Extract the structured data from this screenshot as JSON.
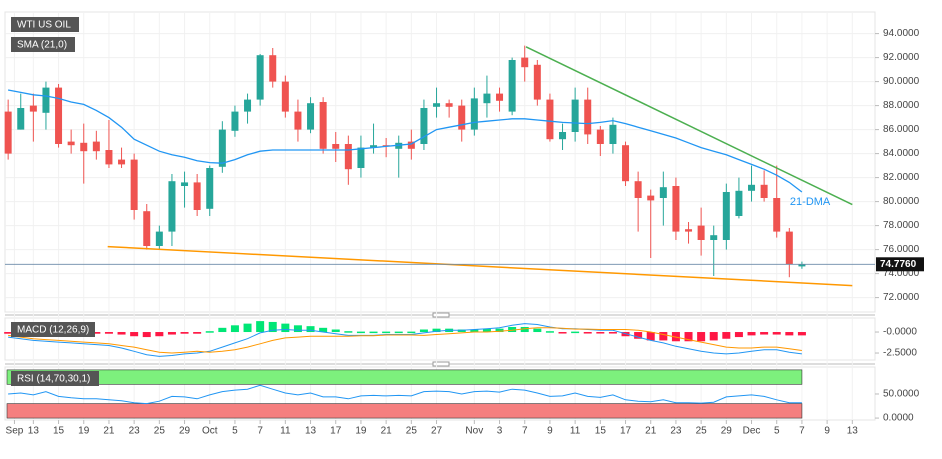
{
  "chart_data": [
    {
      "type": "candlestick",
      "title": "WTI US OIL",
      "indicator": "SMA (21,0)",
      "xlim": [
        -0.25,
        68.8
      ],
      "ylim": [
        70.8,
        95.8
      ],
      "yticks": [
        {
          "value": 72,
          "label": "72.0000"
        },
        {
          "value": 74,
          "label": "74.0000"
        },
        {
          "value": 76,
          "label": "76.0000"
        },
        {
          "value": 78,
          "label": "78.0000"
        },
        {
          "value": 80,
          "label": "80.0000"
        },
        {
          "value": 82,
          "label": "82.0000"
        },
        {
          "value": 84,
          "label": "84.0000"
        },
        {
          "value": 86,
          "label": "86.0000"
        },
        {
          "value": 88,
          "label": "88.0000"
        },
        {
          "value": 90,
          "label": "90.0000"
        },
        {
          "value": 92,
          "label": "92.0000"
        },
        {
          "value": 94,
          "label": "94.0000"
        }
      ],
      "grid": true,
      "up_color": "#26a69a",
      "down_color": "#ef5350",
      "open": [
        87.5,
        86,
        88,
        87.4,
        89.5,
        85,
        84.9,
        85,
        84.3,
        83.5,
        83.5,
        79.2,
        76.3,
        77.5,
        81.3,
        81.6,
        79.4,
        82.9,
        85.9,
        87.5,
        88.5,
        92.2,
        90,
        87.5,
        86,
        88.3,
        84.8,
        84.8,
        82.8,
        84.5,
        84.7,
        84.4,
        85,
        84.8,
        87.9,
        88.2,
        88,
        86,
        88.2,
        89,
        87.5,
        92,
        91.4,
        88.5,
        85.2,
        85.8,
        88.5,
        86,
        84.8,
        84.7,
        81.7,
        80.5,
        80.3,
        81.3,
        77.7,
        78,
        76.8,
        76.8,
        78.8,
        80.9,
        81.4,
        80.3,
        77.5,
        74.6
      ],
      "high": [
        88.5,
        89,
        89,
        90,
        89.8,
        86,
        86.5,
        85.9,
        86.8,
        84.5,
        84,
        79.8,
        78,
        82.3,
        82.5,
        82.3,
        83,
        86.7,
        88,
        89,
        92.3,
        92.8,
        90.5,
        88.5,
        88.7,
        88.7,
        85.8,
        85.5,
        85.5,
        86.5,
        85.3,
        85.5,
        86,
        88.5,
        89.5,
        88.5,
        88.5,
        89.5,
        90.5,
        89.5,
        92,
        93,
        91.8,
        89,
        86.5,
        89.5,
        89.5,
        86.3,
        87,
        85,
        82.5,
        81,
        82.5,
        82,
        78.3,
        79.5,
        78,
        81.5,
        82,
        83,
        82.6,
        83,
        77.8,
        75
      ],
      "low": [
        83.5,
        86,
        85,
        86,
        84.5,
        84,
        81.5,
        83.5,
        82.8,
        82.8,
        78.5,
        76,
        76,
        76.3,
        79.5,
        78.8,
        78.8,
        82.4,
        85.4,
        86.5,
        88,
        89.5,
        87,
        85,
        85.7,
        84,
        83.3,
        81.4,
        82,
        84,
        83.7,
        82,
        83.5,
        84.3,
        87,
        87,
        85,
        85.5,
        87,
        87.5,
        87.2,
        90,
        88,
        85,
        84.3,
        85,
        84.8,
        83.8,
        84,
        81.3,
        77.5,
        75.3,
        78,
        76.8,
        76.5,
        75.5,
        73.8,
        76,
        78.6,
        80,
        80,
        77,
        73.7,
        74.4
      ],
      "close": [
        84,
        87.8,
        87.5,
        89.5,
        84.8,
        84.7,
        84.2,
        84.2,
        83.1,
        83.1,
        79.3,
        76.3,
        77.5,
        81.7,
        81.6,
        79.3,
        82.8,
        86,
        87.5,
        88.5,
        92.2,
        90,
        87.5,
        86,
        88.2,
        84.4,
        84.4,
        82.7,
        84.5,
        84.7,
        84.6,
        84.9,
        84.4,
        87.8,
        88.2,
        87.9,
        86,
        88.6,
        89,
        88.4,
        91.8,
        91.2,
        88.5,
        85.2,
        85.8,
        88.5,
        85.6,
        84.8,
        86.4,
        81.7,
        80.3,
        80.1,
        81.2,
        77.5,
        77.5,
        76.8,
        77.2,
        80.8,
        80.9,
        81.4,
        80.3,
        77.5,
        74.8,
        74.78
      ],
      "series": [
        {
          "name": "21-DMA",
          "color": "#2196f3",
          "values": [
            89.3,
            89.1,
            88.9,
            88.8,
            88.6,
            88.3,
            88.1,
            87.6,
            87,
            86.2,
            85.2,
            84.7,
            84.2,
            83.9,
            83.7,
            83.4,
            83.25,
            83.2,
            83.5,
            83.9,
            84.2,
            84.3,
            84.3,
            84.3,
            84.3,
            84.3,
            84.3,
            84.3,
            84.4,
            84.5,
            84.6,
            84.7,
            84.8,
            85.4,
            86,
            86.2,
            86.4,
            86.6,
            86.7,
            86.8,
            86.9,
            86.9,
            86.8,
            86.7,
            86.6,
            86.55,
            86.5,
            86.6,
            86.75,
            86.5,
            86.2,
            85.9,
            85.6,
            85.3,
            84.9,
            84.5,
            84.2,
            83.9,
            83.5,
            83.1,
            82.7,
            82.2,
            81.6,
            80.8
          ]
        }
      ],
      "trendlines": [
        {
          "color": "#4caf50",
          "x": [
            41.1,
            67
          ],
          "y": [
            92.9,
            79.75
          ]
        },
        {
          "color": "#ff9800",
          "x": [
            7.9,
            67
          ],
          "y": [
            76.25,
            73.0
          ]
        }
      ],
      "last_price": {
        "value": 74.776,
        "label": "74.7760"
      }
    },
    {
      "type": "macd",
      "title": "MACD (12,26,9)",
      "xlim": [
        -0.25,
        68.8
      ],
      "ylim": [
        -3.33,
        1.67
      ],
      "yticks": [
        {
          "value": 0,
          "label": "-0.0000"
        },
        {
          "value": -2.5,
          "label": "-2.5000"
        }
      ],
      "up_color": "#00e676",
      "down_color": "#ff1744",
      "histogram": [
        -0.2,
        -0.2,
        -0.2,
        -0.2,
        -0.2,
        -0.2,
        -0.2,
        -0.2,
        -0.2,
        -0.3,
        -0.5,
        -0.6,
        -0.5,
        -0.3,
        -0.2,
        -0.2,
        0.1,
        0.5,
        0.8,
        1.0,
        1.3,
        1.2,
        1.0,
        0.8,
        0.7,
        0.5,
        0.3,
        0.1,
        0.05,
        0.05,
        0.05,
        0.05,
        0.05,
        0.3,
        0.4,
        0.4,
        0.3,
        0.3,
        0.4,
        0.4,
        0.6,
        0.6,
        0.4,
        0.1,
        -0.05,
        0.05,
        -0.05,
        -0.1,
        -0.1,
        -0.5,
        -0.8,
        -1.0,
        -1.0,
        -1.1,
        -1.1,
        -1.1,
        -1.0,
        -0.8,
        -0.6,
        -0.4,
        -0.3,
        -0.3,
        -0.4,
        -0.4
      ],
      "lines": [
        {
          "color": "#2196f3",
          "values": [
            -0.6,
            -0.8,
            -1.0,
            -1.1,
            -1.2,
            -1.3,
            -1.4,
            -1.5,
            -1.6,
            -1.9,
            -2.3,
            -2.7,
            -2.9,
            -2.8,
            -2.6,
            -2.5,
            -2.3,
            -1.8,
            -1.3,
            -0.8,
            -0.1,
            0.2,
            0.3,
            0.2,
            0.2,
            0,
            -0.2,
            -0.4,
            -0.4,
            -0.4,
            -0.3,
            -0.3,
            -0.3,
            -0.1,
            0.1,
            0.2,
            0.2,
            0.3,
            0.4,
            0.5,
            0.8,
            1.0,
            0.9,
            0.6,
            0.4,
            0.4,
            0.3,
            0.2,
            0.2,
            -0.2,
            -0.6,
            -1.0,
            -1.3,
            -1.7,
            -2.0,
            -2.3,
            -2.5,
            -2.6,
            -2.5,
            -2.3,
            -2.1,
            -2.1,
            -2.4,
            -2.6
          ]
        },
        {
          "color": "#ff9800",
          "values": [
            -0.4,
            -0.6,
            -0.8,
            -0.9,
            -1.0,
            -1.1,
            -1.2,
            -1.3,
            -1.4,
            -1.6,
            -1.8,
            -2.1,
            -2.4,
            -2.5,
            -2.4,
            -2.3,
            -2.4,
            -2.3,
            -2.1,
            -1.8,
            -1.4,
            -1.0,
            -0.7,
            -0.6,
            -0.5,
            -0.5,
            -0.5,
            -0.5,
            -0.45,
            -0.45,
            -0.35,
            -0.35,
            -0.35,
            -0.4,
            -0.3,
            -0.2,
            -0.1,
            0,
            0,
            0.1,
            0.2,
            0.4,
            0.5,
            0.5,
            0.45,
            0.35,
            0.35,
            0.3,
            0.3,
            0.3,
            0.2,
            0,
            -0.3,
            -0.6,
            -0.9,
            -1.2,
            -1.5,
            -1.8,
            -1.9,
            -1.9,
            -1.8,
            -1.8,
            -2.0,
            -2.2
          ]
        }
      ]
    },
    {
      "type": "rsi",
      "title": "RSI (14,70,30,1)",
      "xlim": [
        -0.25,
        68.8
      ],
      "ylim": [
        -4,
        106
      ],
      "yticks": [
        {
          "value": 50,
          "label": "50.0000"
        },
        {
          "value": 0,
          "label": "0.0000"
        }
      ],
      "overbought": 70,
      "oversold": 30,
      "band_colors": [
        "#7df07d",
        "#f57f7f"
      ],
      "lines": [
        {
          "color": "#2196f3",
          "values": [
            50,
            52,
            48,
            55,
            45,
            42,
            40,
            40,
            38,
            36,
            32,
            30,
            35,
            45,
            44,
            40,
            48,
            55,
            58,
            60,
            68,
            60,
            52,
            48,
            52,
            44,
            44,
            40,
            46,
            47,
            46,
            47,
            46,
            55,
            56,
            55,
            50,
            55,
            56,
            54,
            60,
            58,
            52,
            45,
            46,
            52,
            45,
            43,
            48,
            38,
            35,
            34,
            38,
            32,
            32,
            31,
            33,
            44,
            46,
            48,
            45,
            38,
            32,
            32
          ]
        }
      ],
      "xticks": [
        {
          "value": 0.5,
          "label": "Sep"
        },
        2,
        4,
        6,
        8,
        10,
        12,
        14,
        {
          "value": 16,
          "label": "Oct"
        },
        18,
        20,
        22,
        24,
        26,
        28,
        30,
        32,
        34,
        {
          "value": 37,
          "label": "Nov"
        },
        39,
        41,
        43,
        45,
        47,
        49,
        51,
        53,
        55,
        57,
        {
          "value": 59,
          "label": "Dec"
        },
        61,
        63,
        65,
        67
      ],
      "xtick_labels": [
        "13",
        "15",
        "19",
        "21",
        "23",
        "25",
        "29",
        "5",
        "7",
        "11",
        "13",
        "17",
        "19",
        "21",
        "25",
        "27",
        "3",
        "7",
        "9",
        "11",
        "15",
        "17",
        "21",
        "23",
        "25",
        "29",
        "5",
        "7",
        "9",
        "13"
      ]
    }
  ]
}
